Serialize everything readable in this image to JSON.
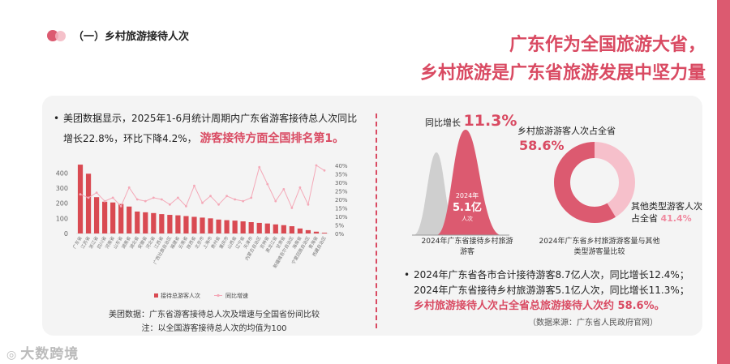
{
  "section": {
    "title": "（一）乡村旅游接待人次"
  },
  "headline": {
    "line1": "广东作为全国旅游大省，",
    "line2": "乡村旅游是广东省旅游发展中坚力量"
  },
  "left": {
    "bullet_part1": "美团数据显示，2025年1-6月统计周期内广东省游客接待总人次同比",
    "bullet_part2": "增长22.8%，环比下降4.2%，",
    "bullet_highlight": "游客接待方面全国排名第1。",
    "caption_line1": "美团数据：广东省游客接待总人次及增速与全国省份间比较",
    "caption_line2": "注：以全国游客接待总人次的均值为100",
    "legend": {
      "bar": "接待总游客人次",
      "line": "同比增速"
    }
  },
  "peak": {
    "label": "同比增长",
    "growth": "11.3%",
    "inner_year": "2024年",
    "inner_value": "5.1亿",
    "inner_unit": "人次",
    "caption": "2024年广东省接待乡村旅游游客"
  },
  "donut": {
    "label1": "乡村旅游游客人次占全省",
    "pct1": "58.6%",
    "label2": "其他类型游客人次占全省",
    "pct2": "41.4%",
    "caption": "2024年广东省乡村旅游游客量与其他类型游客量比较",
    "colors": {
      "main": "#dc5a70",
      "other": "#f6c0cb"
    }
  },
  "stats": {
    "line1": "2024年广东省各市合计接待游客8.7亿人次，同比增长12.4%；",
    "line2": "2024年广东省接待乡村旅游游客5.1亿人次，同比增长11.3%；",
    "line3": "乡村旅游接待人次占全省总旅游接待人次约 58.6%。",
    "source": "（数据来源：广东省人民政府官网）"
  },
  "logo": {
    "text": "大数跨境"
  },
  "chart_data": {
    "type": "bar+line",
    "title": "美团数据：广东省游客接待总人次及增速与全国省份间比较",
    "note": "注：以全国游客接待总人次的均值为100",
    "y_left": {
      "ticks": [
        0,
        100,
        200,
        300,
        400
      ],
      "range": [
        0,
        450
      ]
    },
    "y_right": {
      "ticks": [
        "0%",
        "5%",
        "10%",
        "15%",
        "20%",
        "25%",
        "30%",
        "35%",
        "40%"
      ],
      "range": [
        0,
        40
      ]
    },
    "categories": [
      "广东省",
      "江苏省",
      "浙江省",
      "四川省",
      "河南省",
      "山东省",
      "湖南省",
      "湖北省",
      "安徽省",
      "河北省",
      "江西省",
      "广西壮族自治区",
      "福建省",
      "云南省",
      "陕西省",
      "北京市",
      "上海市",
      "贵州省",
      "重庆市",
      "山西省",
      "辽宁省",
      "天津市",
      "内蒙古自治区",
      "吉林省",
      "黑龙江省",
      "甘肃省",
      "新疆维吾尔自治区",
      "海南省",
      "宁夏回族自治区",
      "青海省",
      "西藏自治区"
    ],
    "series": [
      {
        "name": "接待总游客人次",
        "type": "bar",
        "axis": "left",
        "values": [
          455,
          395,
          240,
          210,
          205,
          195,
          178,
          145,
          140,
          135,
          128,
          123,
          120,
          115,
          110,
          105,
          100,
          92,
          88,
          85,
          80,
          75,
          70,
          66,
          60,
          55,
          48,
          33,
          22,
          12,
          5
        ]
      },
      {
        "name": "同比增速",
        "type": "line",
        "axis": "right",
        "values": [
          23,
          21,
          24,
          19,
          21,
          16,
          27,
          20,
          19,
          21,
          20,
          17,
          21,
          16,
          28,
          18,
          22,
          17,
          22,
          20,
          19,
          21,
          39,
          29,
          19,
          26,
          15,
          27,
          17,
          40,
          37
        ]
      }
    ]
  }
}
